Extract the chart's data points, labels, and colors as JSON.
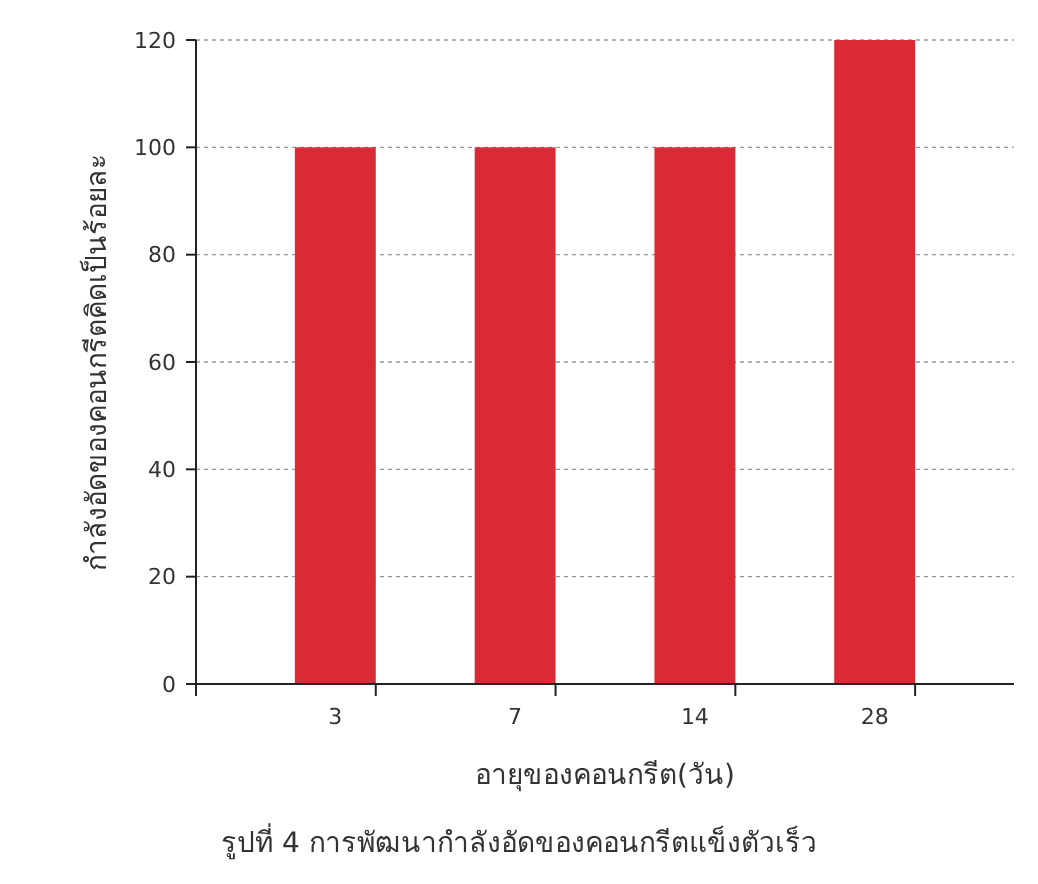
{
  "chart_data": {
    "type": "bar",
    "xlabel": "อายุของคอนกรีต(วัน)",
    "ylabel": "กำลังอัดของคอนกรีตคิดเป็นร้อยละ",
    "categories": [
      "3",
      "7",
      "14",
      "28"
    ],
    "values": [
      100,
      100,
      100,
      120
    ],
    "color": "#da2a35",
    "ylim": [
      0,
      120
    ],
    "yticks": [
      0,
      20,
      40,
      60,
      80,
      100,
      120
    ],
    "grid": "y",
    "annotations": [
      "รูปที่ 4 การพัฒนากำลังอัดของคอนกรีตแข็งตัวเร็ว"
    ]
  }
}
